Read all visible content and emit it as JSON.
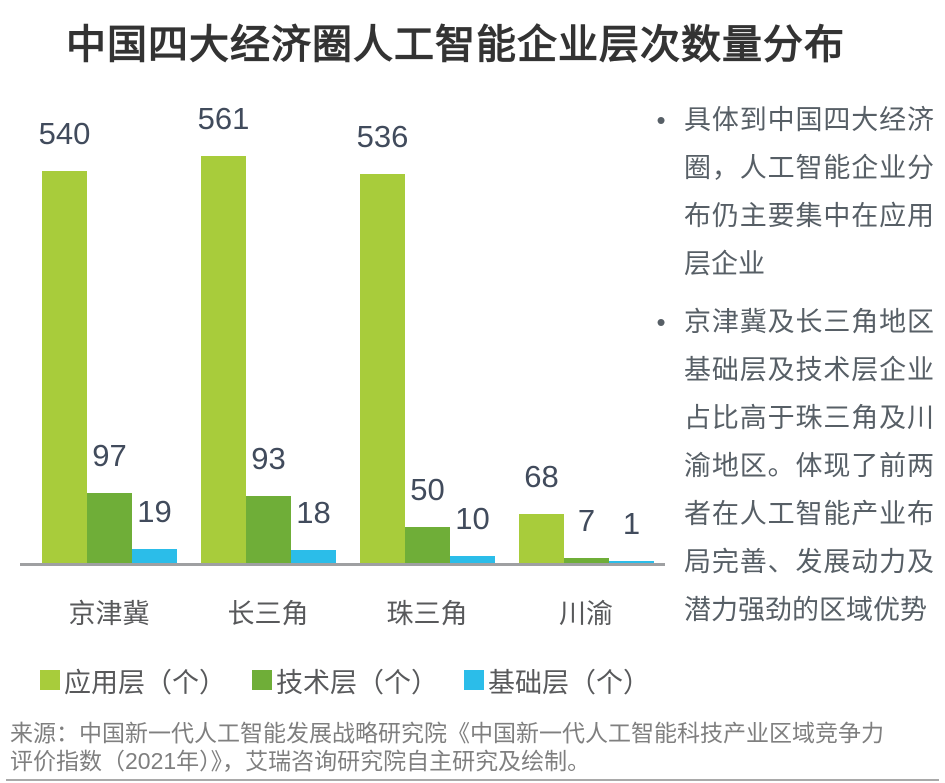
{
  "title": "中国四大经济圈人工智能企业层次数量分布",
  "chart_data": {
    "type": "bar",
    "title": "中国四大经济圈人工智能企业层次数量分布",
    "categories": [
      "京津冀",
      "长三角",
      "珠三角",
      "川渝"
    ],
    "series": [
      {
        "name": "应用层（个）",
        "color": "#a8cc3b",
        "values": [
          540,
          561,
          536,
          68
        ]
      },
      {
        "name": "技术层（个）",
        "color": "#6fae38",
        "values": [
          97,
          93,
          50,
          7
        ]
      },
      {
        "name": "基础层（个）",
        "color": "#2bbde9",
        "values": [
          19,
          18,
          10,
          1
        ]
      }
    ],
    "xlabel": "",
    "ylabel": "",
    "ylim": [
      0,
      600
    ],
    "grid": false,
    "value_labels_shown": true,
    "legend_position": "bottom",
    "axis_line_color": "#9fa0a2",
    "value_label_color": "#414b5c",
    "category_label_color": "#58595b"
  },
  "annotations": {
    "marker": "•",
    "text_color": "#575f66",
    "bullets": [
      {
        "text": "具体到中国四大经济圈，人工智能企业分布仍主要集中在应用层企业"
      },
      {
        "text": "京津冀及长三角地区基础层及技术层企业占比高于珠三角及川渝地区。体现了前两者在人工智能产业布局完善、发展动力及潜力强劲的区域优势"
      }
    ]
  },
  "source": {
    "line1": "来源：中国新一代人工智能发展战略研究院《中国新一代人工智能科技产业区域竞争力",
    "line2": "评价指数（2021年）》，艾瑞咨询研究院自主研究及绘制。"
  }
}
